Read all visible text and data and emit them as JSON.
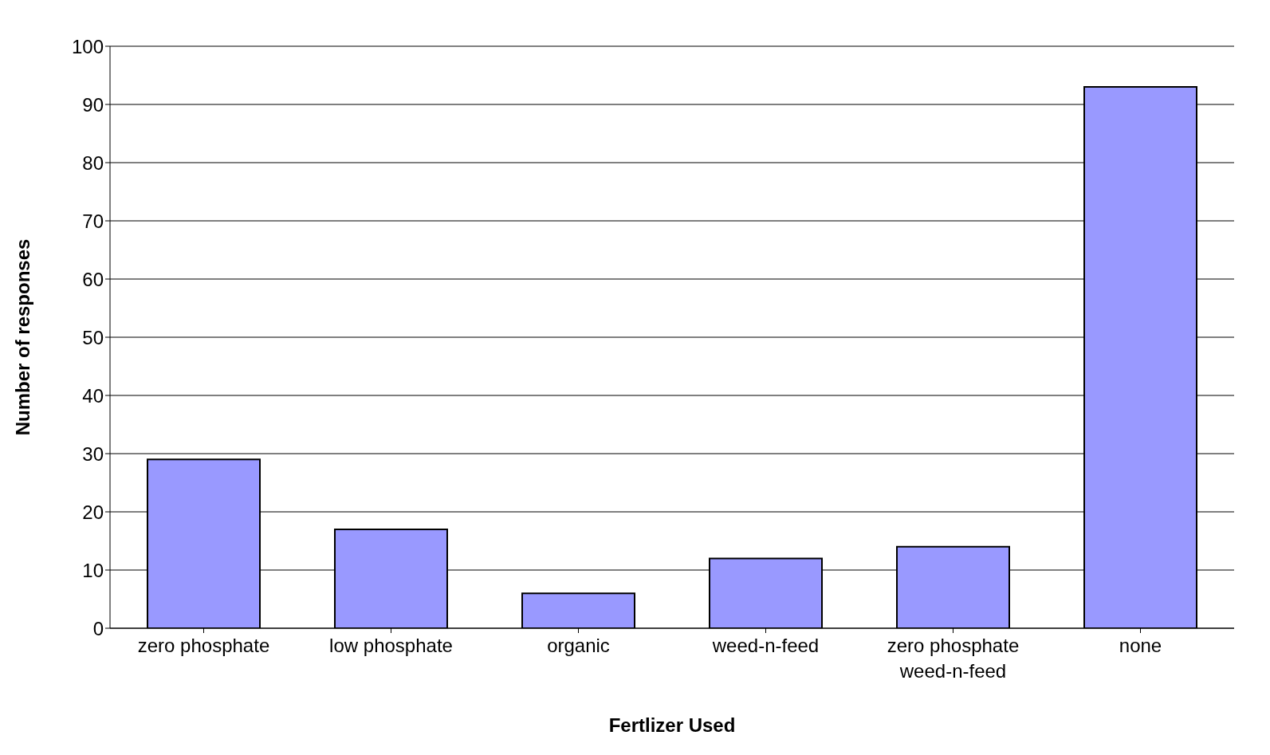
{
  "chart_data": {
    "type": "bar",
    "xlabel": "Fertlizer Used",
    "ylabel": "Number of responses",
    "categories": [
      "zero phosphate",
      "low phosphate",
      "organic",
      "weed-n-feed",
      "zero phosphate weed-n-feed",
      "none"
    ],
    "values": [
      29,
      17,
      6,
      12,
      14,
      93
    ],
    "color": "#9999ff",
    "ylim": [
      0,
      100
    ],
    "yticks": [
      0,
      10,
      20,
      30,
      40,
      50,
      60,
      70,
      80,
      90,
      100
    ],
    "grid": "y"
  }
}
